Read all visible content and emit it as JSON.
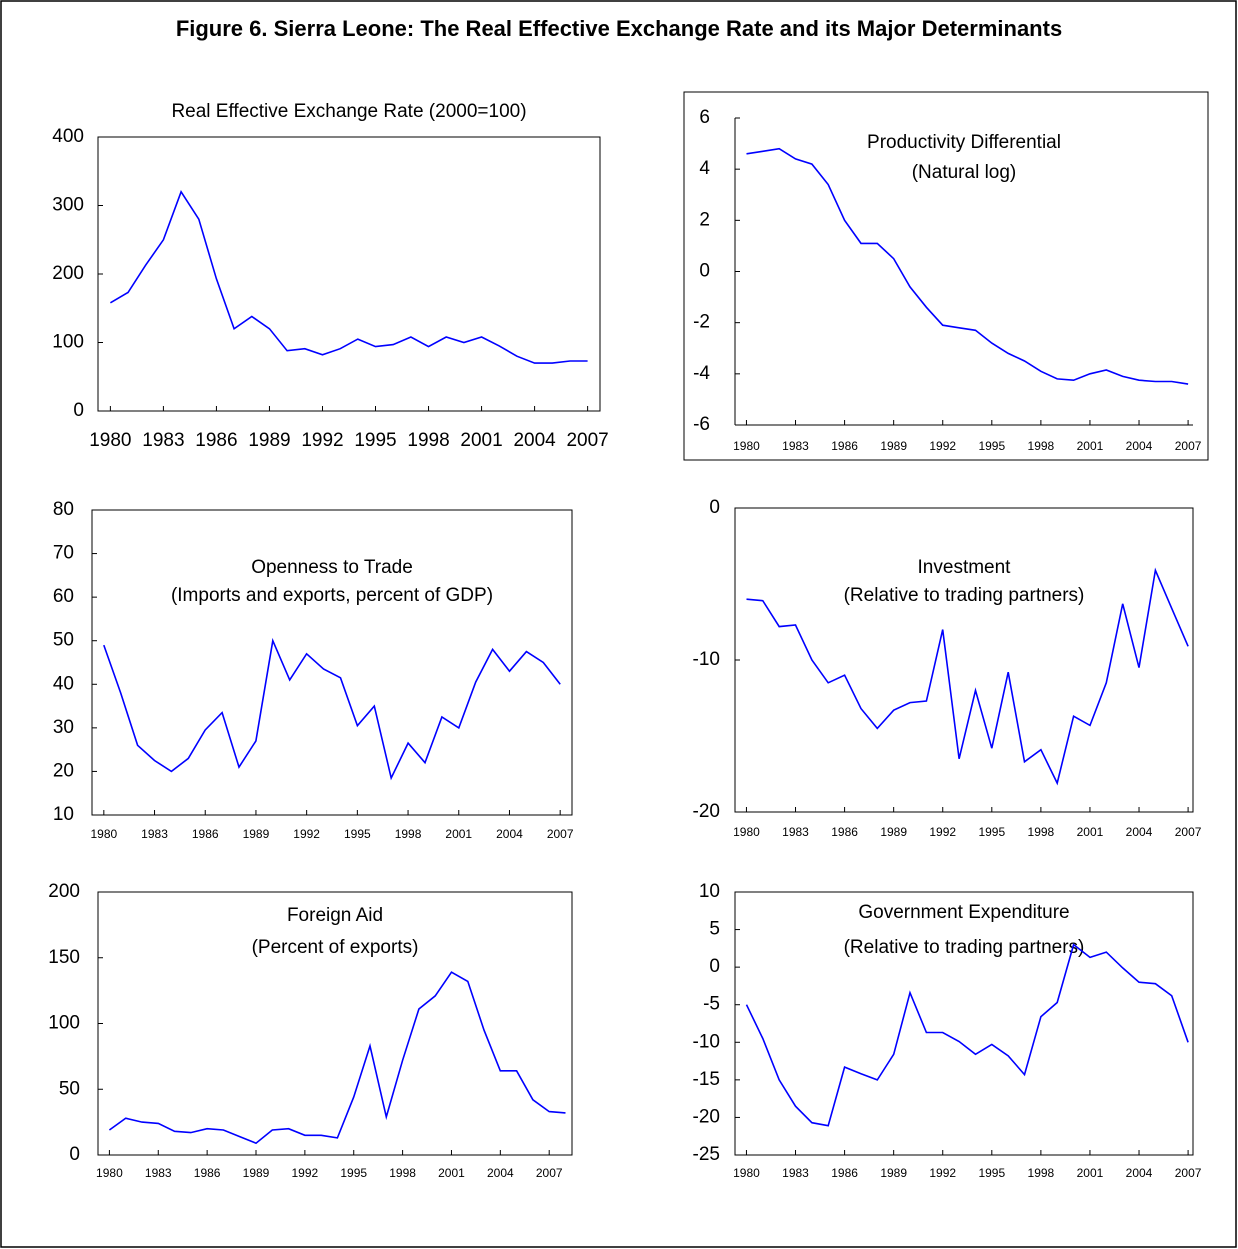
{
  "title": "Figure 6. Sierra Leone: The Real Effective Exchange Rate and its Major Determinants",
  "chart_data": [
    {
      "type": "line",
      "title": "Real Effective Exchange Rate (2000=100)",
      "x": [
        1980,
        1981,
        1982,
        1983,
        1984,
        1985,
        1986,
        1987,
        1988,
        1989,
        1990,
        1991,
        1992,
        1993,
        1994,
        1995,
        1996,
        1997,
        1998,
        1999,
        2000,
        2001,
        2002,
        2003,
        2004,
        2005,
        2006,
        2007
      ],
      "values": [
        158,
        173,
        213,
        250,
        320,
        280,
        193,
        120,
        138,
        120,
        88,
        91,
        82,
        91,
        105,
        94,
        97,
        108,
        94,
        108,
        100,
        108,
        95,
        80,
        70,
        70,
        73,
        73
      ],
      "color": "#0000ff",
      "xlim": [
        1979.3,
        2007.7
      ],
      "xticks": [
        1980,
        1983,
        1986,
        1989,
        1992,
        1995,
        1998,
        2001,
        2004,
        2007
      ],
      "ylim": [
        0,
        400
      ],
      "yticks": [
        0,
        100,
        200,
        300,
        400
      ]
    },
    {
      "type": "line",
      "title": "Productivity Differential",
      "subtitle": "(Natural log)",
      "x": [
        1980,
        1981,
        1982,
        1983,
        1984,
        1985,
        1986,
        1987,
        1988,
        1989,
        1990,
        1991,
        1992,
        1993,
        1994,
        1995,
        1996,
        1997,
        1998,
        1999,
        2000,
        2001,
        2002,
        2003,
        2004,
        2005,
        2006,
        2007
      ],
      "values": [
        4.6,
        4.7,
        4.8,
        4.4,
        4.2,
        3.4,
        2.0,
        1.1,
        1.1,
        0.5,
        -0.6,
        -1.4,
        -2.1,
        -2.2,
        -2.3,
        -2.8,
        -3.2,
        -3.5,
        -3.9,
        -4.2,
        -4.25,
        -4.0,
        -3.85,
        -4.1,
        -4.25,
        -4.3,
        -4.3,
        -4.4
      ],
      "color": "#0000ff",
      "xlim": [
        1979.3,
        2007.3
      ],
      "xticks": [
        1980,
        1983,
        1986,
        1989,
        1992,
        1995,
        1998,
        2001,
        2004,
        2007
      ],
      "ylim": [
        -6,
        6
      ],
      "yticks": [
        -6,
        -4,
        -2,
        0,
        2,
        4,
        6
      ]
    },
    {
      "type": "line",
      "title": "Openness to Trade",
      "subtitle": "(Imports and exports,  percent of GDP)",
      "x": [
        1980,
        1981,
        1982,
        1983,
        1984,
        1985,
        1986,
        1987,
        1988,
        1989,
        1990,
        1991,
        1992,
        1993,
        1994,
        1995,
        1996,
        1997,
        1998,
        1999,
        2000,
        2001,
        2002,
        2003,
        2004,
        2005,
        2006,
        2007
      ],
      "values": [
        49,
        38,
        26,
        22.5,
        20,
        23,
        29.5,
        33.5,
        21,
        27,
        50,
        41,
        47,
        43.5,
        41.5,
        30.5,
        35,
        18.5,
        26.5,
        22,
        32.5,
        30,
        40.5,
        48,
        43,
        47.5,
        45,
        40
      ],
      "color": "#0000ff",
      "xlim": [
        1979.3,
        2007.7
      ],
      "xticks": [
        1980,
        1983,
        1986,
        1989,
        1992,
        1995,
        1998,
        2001,
        2004,
        2007
      ],
      "ylim": [
        10,
        80
      ],
      "yticks": [
        10,
        20,
        30,
        40,
        50,
        60,
        70,
        80
      ]
    },
    {
      "type": "line",
      "title": "Investment",
      "subtitle": "(Relative to trading partners)",
      "x": [
        1980,
        1981,
        1982,
        1983,
        1984,
        1985,
        1986,
        1987,
        1988,
        1989,
        1990,
        1991,
        1992,
        1993,
        1994,
        1995,
        1996,
        1997,
        1998,
        1999,
        2000,
        2001,
        2002,
        2003,
        2004,
        2005,
        2006,
        2007
      ],
      "values": [
        -6,
        -6.1,
        -7.8,
        -7.7,
        -10,
        -11.5,
        -11,
        -13.2,
        -14.5,
        -13.3,
        -12.8,
        -12.7,
        -8,
        -16.5,
        -12,
        -15.8,
        -10.8,
        -16.7,
        -15.9,
        -18.1,
        -13.7,
        -14.3,
        -11.5,
        -6.3,
        -10.5,
        -4.1,
        -6.6,
        -9.1
      ],
      "color": "#0000ff",
      "xlim": [
        1979.3,
        2007.3
      ],
      "xticks": [
        1980,
        1983,
        1986,
        1989,
        1992,
        1995,
        1998,
        2001,
        2004,
        2007
      ],
      "ylim": [
        -20,
        0
      ],
      "yticks": [
        -20,
        -10,
        0
      ]
    },
    {
      "type": "line",
      "title": "Foreign Aid",
      "subtitle": "(Percent of exports)",
      "x": [
        1980,
        1981,
        1982,
        1983,
        1984,
        1985,
        1986,
        1987,
        1988,
        1989,
        1990,
        1991,
        1992,
        1993,
        1994,
        1995,
        1996,
        1997,
        1998,
        1999,
        2000,
        2001,
        2002,
        2003,
        2004,
        2005,
        2006,
        2007,
        2008
      ],
      "values": [
        19,
        28,
        25,
        24,
        18,
        17,
        20,
        19,
        14,
        9,
        19,
        20,
        15,
        15,
        13,
        44,
        83,
        29,
        72,
        111,
        121,
        139,
        132,
        95,
        64,
        64,
        42,
        33,
        32
      ],
      "color": "#0000ff",
      "xlim": [
        1979.3,
        2008.4
      ],
      "xticks": [
        1980,
        1983,
        1986,
        1989,
        1992,
        1995,
        1998,
        2001,
        2004,
        2007
      ],
      "ylim": [
        0,
        200
      ],
      "yticks": [
        0,
        50,
        100,
        150,
        200
      ]
    },
    {
      "type": "line",
      "title": "Government Expenditure",
      "subtitle": "(Relative to trading partners)",
      "x": [
        1980,
        1981,
        1982,
        1983,
        1984,
        1985,
        1986,
        1987,
        1988,
        1989,
        1990,
        1991,
        1992,
        1993,
        1994,
        1995,
        1996,
        1997,
        1998,
        1999,
        2000,
        2001,
        2002,
        2003,
        2004,
        2005,
        2006,
        2007
      ],
      "values": [
        -5,
        -9.5,
        -15,
        -18.5,
        -20.7,
        -21.1,
        -13.3,
        -14.2,
        -15,
        -11.6,
        -3.4,
        -8.7,
        -8.7,
        -9.9,
        -11.6,
        -10.3,
        -11.8,
        -14.3,
        -6.6,
        -4.7,
        3,
        1.3,
        2,
        -0.1,
        -2,
        -2.2,
        -3.8,
        -10
      ],
      "color": "#0000ff",
      "xlim": [
        1979.3,
        2007.3
      ],
      "xticks": [
        1980,
        1983,
        1986,
        1989,
        1992,
        1995,
        1998,
        2001,
        2004,
        2007
      ],
      "ylim": [
        -25,
        10
      ],
      "yticks": [
        -25,
        -20,
        -15,
        -10,
        -5,
        0,
        5,
        10
      ]
    }
  ]
}
